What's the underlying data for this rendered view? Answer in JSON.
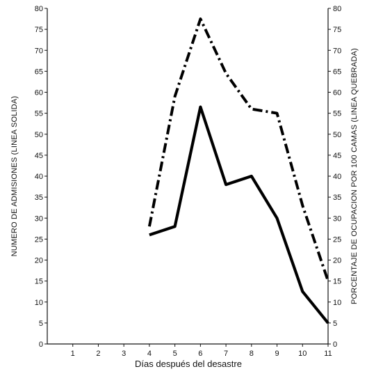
{
  "chart_data": {
    "type": "line",
    "title": "",
    "xlabel": "Días después del desastre",
    "ylabel_left": "NUMERO DE ADMISIONES (LINEA SOLIDA)",
    "ylabel_right": "PORCENTAJE DE OCUPACION POR 100 CAMAS (LINEA QUEBRADA)",
    "x_ticks": [
      1,
      2,
      3,
      4,
      5,
      6,
      7,
      8,
      9,
      10,
      11
    ],
    "y_ticks": [
      0,
      5,
      10,
      15,
      20,
      25,
      30,
      35,
      40,
      45,
      50,
      55,
      60,
      65,
      70,
      75,
      80
    ],
    "xlim": [
      0,
      11
    ],
    "ylim_left": [
      0,
      80
    ],
    "ylim_right": [
      0,
      80
    ],
    "grid": false,
    "series": [
      {
        "style": "solid",
        "axis": "left",
        "x": [
          4,
          5,
          6,
          7,
          8,
          9,
          10,
          11
        ],
        "values": [
          26,
          28,
          56.5,
          38,
          40,
          30,
          12.5,
          5
        ]
      },
      {
        "style": "dash-dot",
        "axis": "right",
        "x": [
          4,
          5,
          6,
          7,
          8,
          9,
          10,
          11
        ],
        "values": [
          28,
          59,
          77.5,
          64.5,
          56,
          55,
          33,
          15
        ]
      }
    ],
    "colors": {
      "line": "#000000",
      "axis": "#111111"
    }
  }
}
